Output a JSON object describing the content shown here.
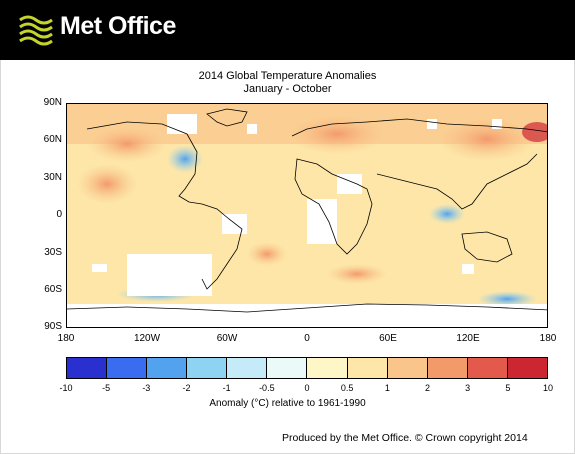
{
  "header": {
    "brand": "Met Office",
    "logo_icon": "met-office-waves-logo",
    "background": "#000000",
    "logo_color": "#c5d32d"
  },
  "map": {
    "title": "2014 Global Temperature Anomalies",
    "subtitle": "January - October",
    "lat_labels": [
      "90N",
      "60N",
      "30N",
      "0",
      "30S",
      "60S",
      "90S"
    ],
    "lon_labels": [
      "180",
      "120W",
      "60W",
      "0",
      "60E",
      "120E",
      "180"
    ]
  },
  "colorbar": {
    "ticks": [
      "-10",
      "-5",
      "-3",
      "-2",
      "-1",
      "-0.5",
      "0",
      "0.5",
      "1",
      "2",
      "3",
      "5",
      "10"
    ],
    "colors": [
      "#2a2fd0",
      "#3a6cf0",
      "#52a2ef",
      "#8ed4f2",
      "#c4ebf7",
      "#eafaf8",
      "#fff6c8",
      "#fde6a8",
      "#f9c58a",
      "#f39a6b",
      "#e35a4c",
      "#cc2633"
    ],
    "label": "Anomaly (°C) relative to 1961-1990"
  },
  "footer": {
    "credit": "Produced by the Met Office. © Crown copyright 2014"
  }
}
